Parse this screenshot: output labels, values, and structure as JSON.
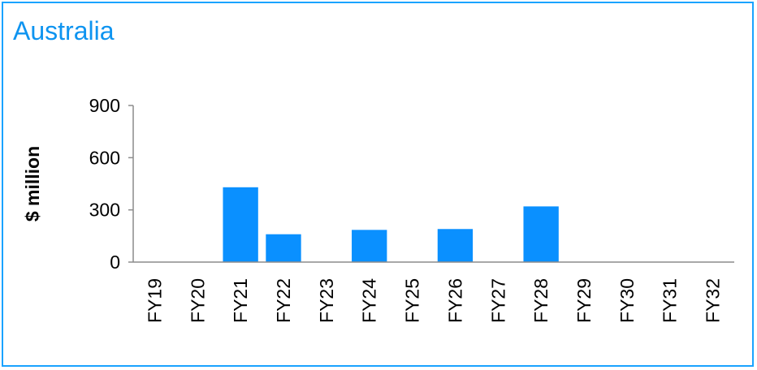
{
  "chart_data": {
    "type": "bar",
    "title": "Australia",
    "xlabel": "",
    "ylabel": "$ million",
    "ylim": [
      0,
      900
    ],
    "yticks": [
      0,
      300,
      600,
      900
    ],
    "grid": false,
    "categories": [
      "FY19",
      "FY20",
      "FY21",
      "FY22",
      "FY23",
      "FY24",
      "FY25",
      "FY26",
      "FY27",
      "FY28",
      "FY29",
      "FY30",
      "FY31",
      "FY32"
    ],
    "values": [
      0,
      0,
      430,
      160,
      0,
      185,
      0,
      190,
      0,
      320,
      0,
      0,
      0,
      0
    ],
    "colors": {
      "bar": "#0A90FF",
      "title": "#0E94F0",
      "border": "#1AA3FF",
      "axis": "#8C8C8C"
    }
  }
}
